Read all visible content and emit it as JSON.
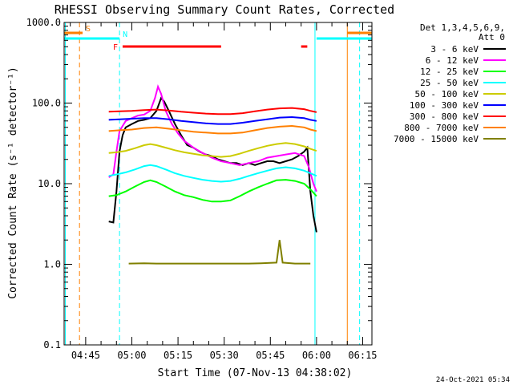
{
  "chart_data": {
    "type": "line",
    "title": "RHESSI Observing Summary Count Rates, Corrected",
    "xlabel": "Start Time (07-Nov-13 04:38:02)",
    "ylabel": "Corrected Count Rate (s⁻¹ detector⁻¹)",
    "yscale": "log",
    "ylim": [
      0.1,
      1000
    ],
    "xlim_minutes": [
      38,
      138
    ],
    "x_ticks": [
      {
        "label": "04:45",
        "minute": 45
      },
      {
        "label": "05:00",
        "minute": 60
      },
      {
        "label": "05:15",
        "minute": 75
      },
      {
        "label": "05:30",
        "minute": 90
      },
      {
        "label": "05:45",
        "minute": 105
      },
      {
        "label": "06:00",
        "minute": 120
      },
      {
        "label": "06:15",
        "minute": 135
      }
    ],
    "y_ticks": [
      {
        "label": "1000.0",
        "value": 1000
      },
      {
        "label": "100.0",
        "value": 100
      },
      {
        "label": "10.0",
        "value": 10
      },
      {
        "label": "1.0",
        "value": 1
      },
      {
        "label": "0.1",
        "value": 0.1
      }
    ],
    "legend": {
      "header": [
        "Det 1,3,4,5,6,9,",
        "Att 0"
      ],
      "position": "right"
    },
    "series": [
      {
        "name": "3 - 6 keV",
        "color": "#000000",
        "points": [
          [
            52.5,
            3.4
          ],
          [
            54,
            3.3
          ],
          [
            55,
            8
          ],
          [
            56,
            25
          ],
          [
            57,
            40
          ],
          [
            58,
            50
          ],
          [
            60,
            55
          ],
          [
            62,
            60
          ],
          [
            64,
            62
          ],
          [
            66,
            65
          ],
          [
            68,
            80
          ],
          [
            69.5,
            115
          ],
          [
            70.5,
            105
          ],
          [
            72,
            80
          ],
          [
            74,
            55
          ],
          [
            76,
            40
          ],
          [
            78,
            30
          ],
          [
            80,
            28
          ],
          [
            82,
            25
          ],
          [
            84,
            23
          ],
          [
            86,
            22
          ],
          [
            88,
            20
          ],
          [
            90,
            19
          ],
          [
            92,
            18
          ],
          [
            94,
            18
          ],
          [
            96,
            17
          ],
          [
            98,
            18
          ],
          [
            100,
            17
          ],
          [
            102,
            18
          ],
          [
            104,
            19
          ],
          [
            106,
            19
          ],
          [
            108,
            18
          ],
          [
            110,
            19
          ],
          [
            112,
            20
          ],
          [
            114,
            22
          ],
          [
            116,
            25
          ],
          [
            117,
            28
          ],
          [
            118,
            8
          ],
          [
            119,
            4
          ],
          [
            120,
            2.5
          ]
        ]
      },
      {
        "name": "6 - 12 keV",
        "color": "#ff00ff",
        "points": [
          [
            52.5,
            12
          ],
          [
            54,
            13
          ],
          [
            55,
            25
          ],
          [
            56,
            45
          ],
          [
            58,
            60
          ],
          [
            60,
            65
          ],
          [
            62,
            70
          ],
          [
            64,
            72
          ],
          [
            66,
            80
          ],
          [
            67.5,
            115
          ],
          [
            68.5,
            160
          ],
          [
            69.5,
            130
          ],
          [
            71,
            80
          ],
          [
            73,
            55
          ],
          [
            75,
            42
          ],
          [
            77,
            34
          ],
          [
            80,
            28
          ],
          [
            83,
            24
          ],
          [
            86,
            21
          ],
          [
            89,
            19
          ],
          [
            92,
            18
          ],
          [
            95,
            17
          ],
          [
            98,
            18
          ],
          [
            101,
            19
          ],
          [
            104,
            21
          ],
          [
            107,
            22
          ],
          [
            110,
            23
          ],
          [
            113,
            24
          ],
          [
            116,
            22
          ],
          [
            117.5,
            16
          ],
          [
            119,
            10
          ],
          [
            120,
            8
          ]
        ]
      },
      {
        "name": "12 - 25 keV",
        "color": "#00ff00",
        "points": [
          [
            52.5,
            7
          ],
          [
            55,
            7.2
          ],
          [
            58,
            8
          ],
          [
            61,
            9.2
          ],
          [
            64,
            10.5
          ],
          [
            66,
            11
          ],
          [
            68,
            10.5
          ],
          [
            71,
            9.2
          ],
          [
            74,
            8
          ],
          [
            77,
            7.2
          ],
          [
            80,
            6.8
          ],
          [
            83,
            6.3
          ],
          [
            86,
            6
          ],
          [
            89,
            6
          ],
          [
            92,
            6.2
          ],
          [
            95,
            7
          ],
          [
            98,
            8
          ],
          [
            101,
            9
          ],
          [
            104,
            10
          ],
          [
            107,
            11
          ],
          [
            110,
            11.2
          ],
          [
            113,
            10.8
          ],
          [
            116,
            10
          ],
          [
            118,
            8.5
          ],
          [
            120,
            7
          ]
        ]
      },
      {
        "name": "25 - 50 keV",
        "color": "#00ffff",
        "points": [
          [
            52.5,
            12.5
          ],
          [
            55,
            13
          ],
          [
            58,
            13.8
          ],
          [
            61,
            15
          ],
          [
            64,
            16.5
          ],
          [
            66,
            17
          ],
          [
            68,
            16.5
          ],
          [
            71,
            15
          ],
          [
            74,
            13.5
          ],
          [
            77,
            12.5
          ],
          [
            80,
            11.8
          ],
          [
            83,
            11.2
          ],
          [
            86,
            10.8
          ],
          [
            89,
            10.6
          ],
          [
            92,
            10.8
          ],
          [
            95,
            11.5
          ],
          [
            98,
            12.5
          ],
          [
            101,
            13.5
          ],
          [
            104,
            14.5
          ],
          [
            107,
            15.5
          ],
          [
            110,
            16
          ],
          [
            113,
            15.5
          ],
          [
            116,
            14.5
          ],
          [
            118,
            13.5
          ],
          [
            120,
            12.5
          ]
        ]
      },
      {
        "name": "50 - 100 keV",
        "color": "#cccc00",
        "points": [
          [
            52.5,
            24
          ],
          [
            55,
            24.5
          ],
          [
            58,
            25.5
          ],
          [
            61,
            27.5
          ],
          [
            64,
            30
          ],
          [
            66,
            31
          ],
          [
            68,
            30
          ],
          [
            71,
            28
          ],
          [
            74,
            26
          ],
          [
            77,
            24.5
          ],
          [
            80,
            23.5
          ],
          [
            83,
            22.5
          ],
          [
            86,
            22
          ],
          [
            89,
            21.5
          ],
          [
            92,
            22
          ],
          [
            95,
            23.5
          ],
          [
            98,
            25.5
          ],
          [
            101,
            27.5
          ],
          [
            104,
            29.5
          ],
          [
            107,
            31
          ],
          [
            110,
            32
          ],
          [
            113,
            31
          ],
          [
            116,
            29
          ],
          [
            118,
            27
          ],
          [
            120,
            25.5
          ]
        ]
      },
      {
        "name": "100 - 300 keV",
        "color": "#0000ff",
        "points": [
          [
            52.5,
            62
          ],
          [
            56,
            63
          ],
          [
            60,
            64
          ],
          [
            64,
            65
          ],
          [
            68,
            65
          ],
          [
            72,
            63
          ],
          [
            76,
            60
          ],
          [
            80,
            58
          ],
          [
            84,
            56
          ],
          [
            88,
            55
          ],
          [
            92,
            55
          ],
          [
            96,
            57
          ],
          [
            100,
            60
          ],
          [
            104,
            63
          ],
          [
            108,
            66
          ],
          [
            112,
            67
          ],
          [
            116,
            65
          ],
          [
            118,
            62
          ],
          [
            120,
            60
          ]
        ]
      },
      {
        "name": "300 - 800 keV",
        "color": "#ff0000",
        "points": [
          [
            52.5,
            78
          ],
          [
            56,
            79
          ],
          [
            60,
            80
          ],
          [
            64,
            82
          ],
          [
            68,
            83
          ],
          [
            72,
            81
          ],
          [
            76,
            78
          ],
          [
            80,
            76
          ],
          [
            84,
            74
          ],
          [
            88,
            73
          ],
          [
            92,
            73
          ],
          [
            96,
            75
          ],
          [
            100,
            79
          ],
          [
            104,
            83
          ],
          [
            108,
            86
          ],
          [
            112,
            87
          ],
          [
            116,
            84
          ],
          [
            118,
            80
          ],
          [
            120,
            77
          ]
        ]
      },
      {
        "name": "800 - 7000 keV",
        "color": "#ff8000",
        "points": [
          [
            52.5,
            45
          ],
          [
            56,
            46
          ],
          [
            60,
            47
          ],
          [
            64,
            49
          ],
          [
            68,
            50
          ],
          [
            72,
            48
          ],
          [
            76,
            46
          ],
          [
            80,
            44
          ],
          [
            84,
            43
          ],
          [
            88,
            42
          ],
          [
            92,
            42
          ],
          [
            96,
            43
          ],
          [
            100,
            46
          ],
          [
            104,
            49
          ],
          [
            108,
            51
          ],
          [
            112,
            52
          ],
          [
            116,
            50
          ],
          [
            118,
            47
          ],
          [
            120,
            45
          ]
        ]
      },
      {
        "name": "7000 - 15000 keV",
        "color": "#808000",
        "points": [
          [
            59,
            1.02
          ],
          [
            64,
            1.03
          ],
          [
            68,
            1.02
          ],
          [
            72,
            1.02
          ],
          [
            98,
            1.02
          ],
          [
            102,
            1.03
          ],
          [
            107,
            1.05
          ],
          [
            108,
            2.0
          ],
          [
            109,
            1.05
          ],
          [
            113,
            1.02
          ],
          [
            118,
            1.02
          ]
        ]
      }
    ],
    "flags": [
      {
        "label": "S",
        "color": "#ff8000",
        "x_minutes": [
          38,
          44
        ]
      },
      {
        "label": "S",
        "color": "#ff8000",
        "x_minutes": [
          130,
          138
        ]
      },
      {
        "label": "N",
        "color": "#00ffff",
        "x_minutes": [
          38,
          56
        ]
      },
      {
        "label": "N",
        "color": "#00ffff",
        "x_minutes": [
          120,
          138
        ]
      },
      {
        "label": "F",
        "color": "#ff0000",
        "x_minutes": [
          57,
          89
        ]
      },
      {
        "label": "F",
        "color": "#ff0000",
        "x_minutes": [
          115,
          117
        ]
      }
    ],
    "vertical_lines": [
      {
        "minute": 38.4,
        "color": "#00ffff",
        "style": "solid"
      },
      {
        "minute": 43.0,
        "color": "#ff8000",
        "style": "dashed"
      },
      {
        "minute": 56.0,
        "color": "#00ffff",
        "style": "dashed"
      },
      {
        "minute": 119.5,
        "color": "#00ffff",
        "style": "solid"
      },
      {
        "minute": 130.0,
        "color": "#ff8000",
        "style": "solid"
      },
      {
        "minute": 134.0,
        "color": "#00ffff",
        "style": "dashed"
      }
    ]
  },
  "footer": {
    "date": "24-Oct-2021 05:34"
  }
}
